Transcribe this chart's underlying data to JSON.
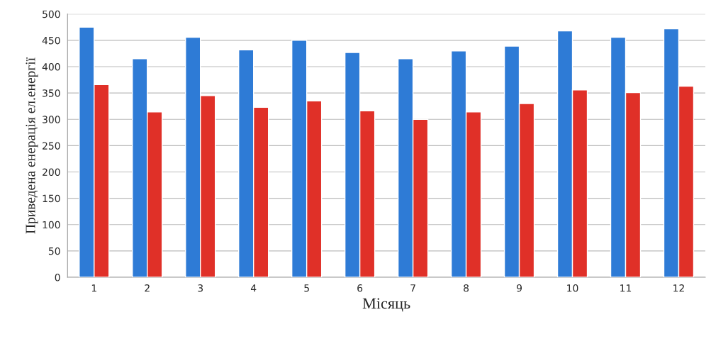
{
  "chart_data": {
    "type": "bar",
    "xlabel": "Місяць",
    "ylabel": "Приведена енерація ел.енергії",
    "categories": [
      "1",
      "2",
      "3",
      "4",
      "5",
      "6",
      "7",
      "8",
      "9",
      "10",
      "11",
      "12"
    ],
    "series": [
      {
        "color": "#2e7bd6",
        "values": [
          475,
          415,
          456,
          432,
          450,
          427,
          415,
          430,
          439,
          468,
          456,
          472
        ]
      },
      {
        "color": "#e03028",
        "values": [
          366,
          314,
          345,
          323,
          335,
          316,
          300,
          314,
          330,
          356,
          351,
          363
        ]
      }
    ],
    "ylim": [
      0,
      500
    ],
    "yticks": [
      0,
      50,
      100,
      150,
      200,
      250,
      300,
      350,
      400,
      450,
      500
    ],
    "grid": "y"
  }
}
